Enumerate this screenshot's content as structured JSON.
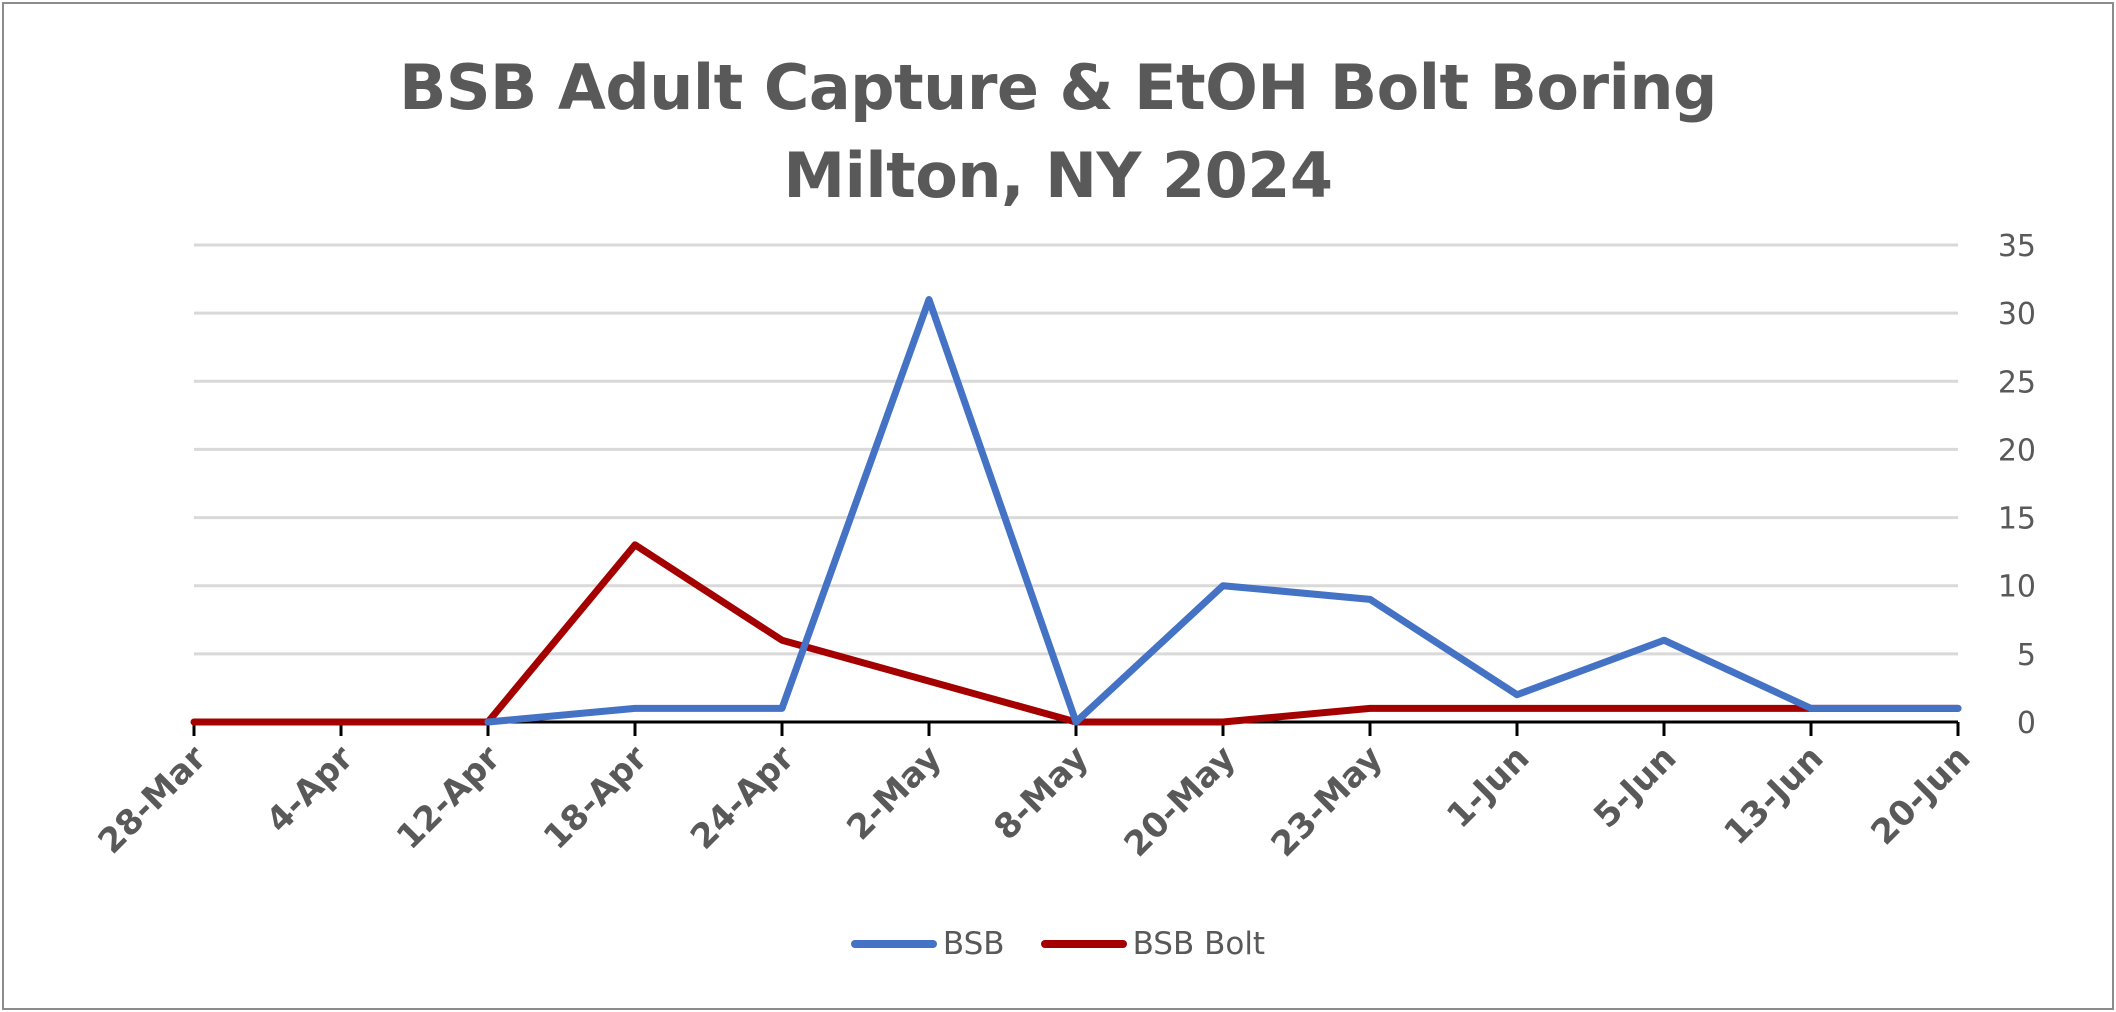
{
  "chart_data": {
    "type": "line",
    "title": [
      "BSB Adult Capture & EtOH Bolt Boring",
      "Milton, NY 2024"
    ],
    "categories": [
      "28-Mar",
      "4-Apr",
      "12-Apr",
      "18-Apr",
      "24-Apr",
      "2-May",
      "8-May",
      "20-May",
      "23-May",
      "1-Jun",
      "5-Jun",
      "13-Jun",
      "20-Jun"
    ],
    "series": [
      {
        "name": "BSB",
        "color": "#4472c4",
        "values": [
          null,
          null,
          0,
          1,
          1,
          31,
          0,
          10,
          9,
          2,
          6,
          1,
          1
        ]
      },
      {
        "name": "BSB Bolt",
        "color": "#a50000",
        "values": [
          0,
          0,
          0,
          13,
          6,
          3,
          0,
          0,
          1,
          1,
          1,
          1,
          1
        ]
      }
    ],
    "ylim": [
      0,
      35
    ],
    "y_ticks": [
      0,
      5,
      10,
      15,
      20,
      25,
      30,
      35
    ],
    "y_axis_position": "right",
    "grid": true,
    "legend": "bottom"
  }
}
